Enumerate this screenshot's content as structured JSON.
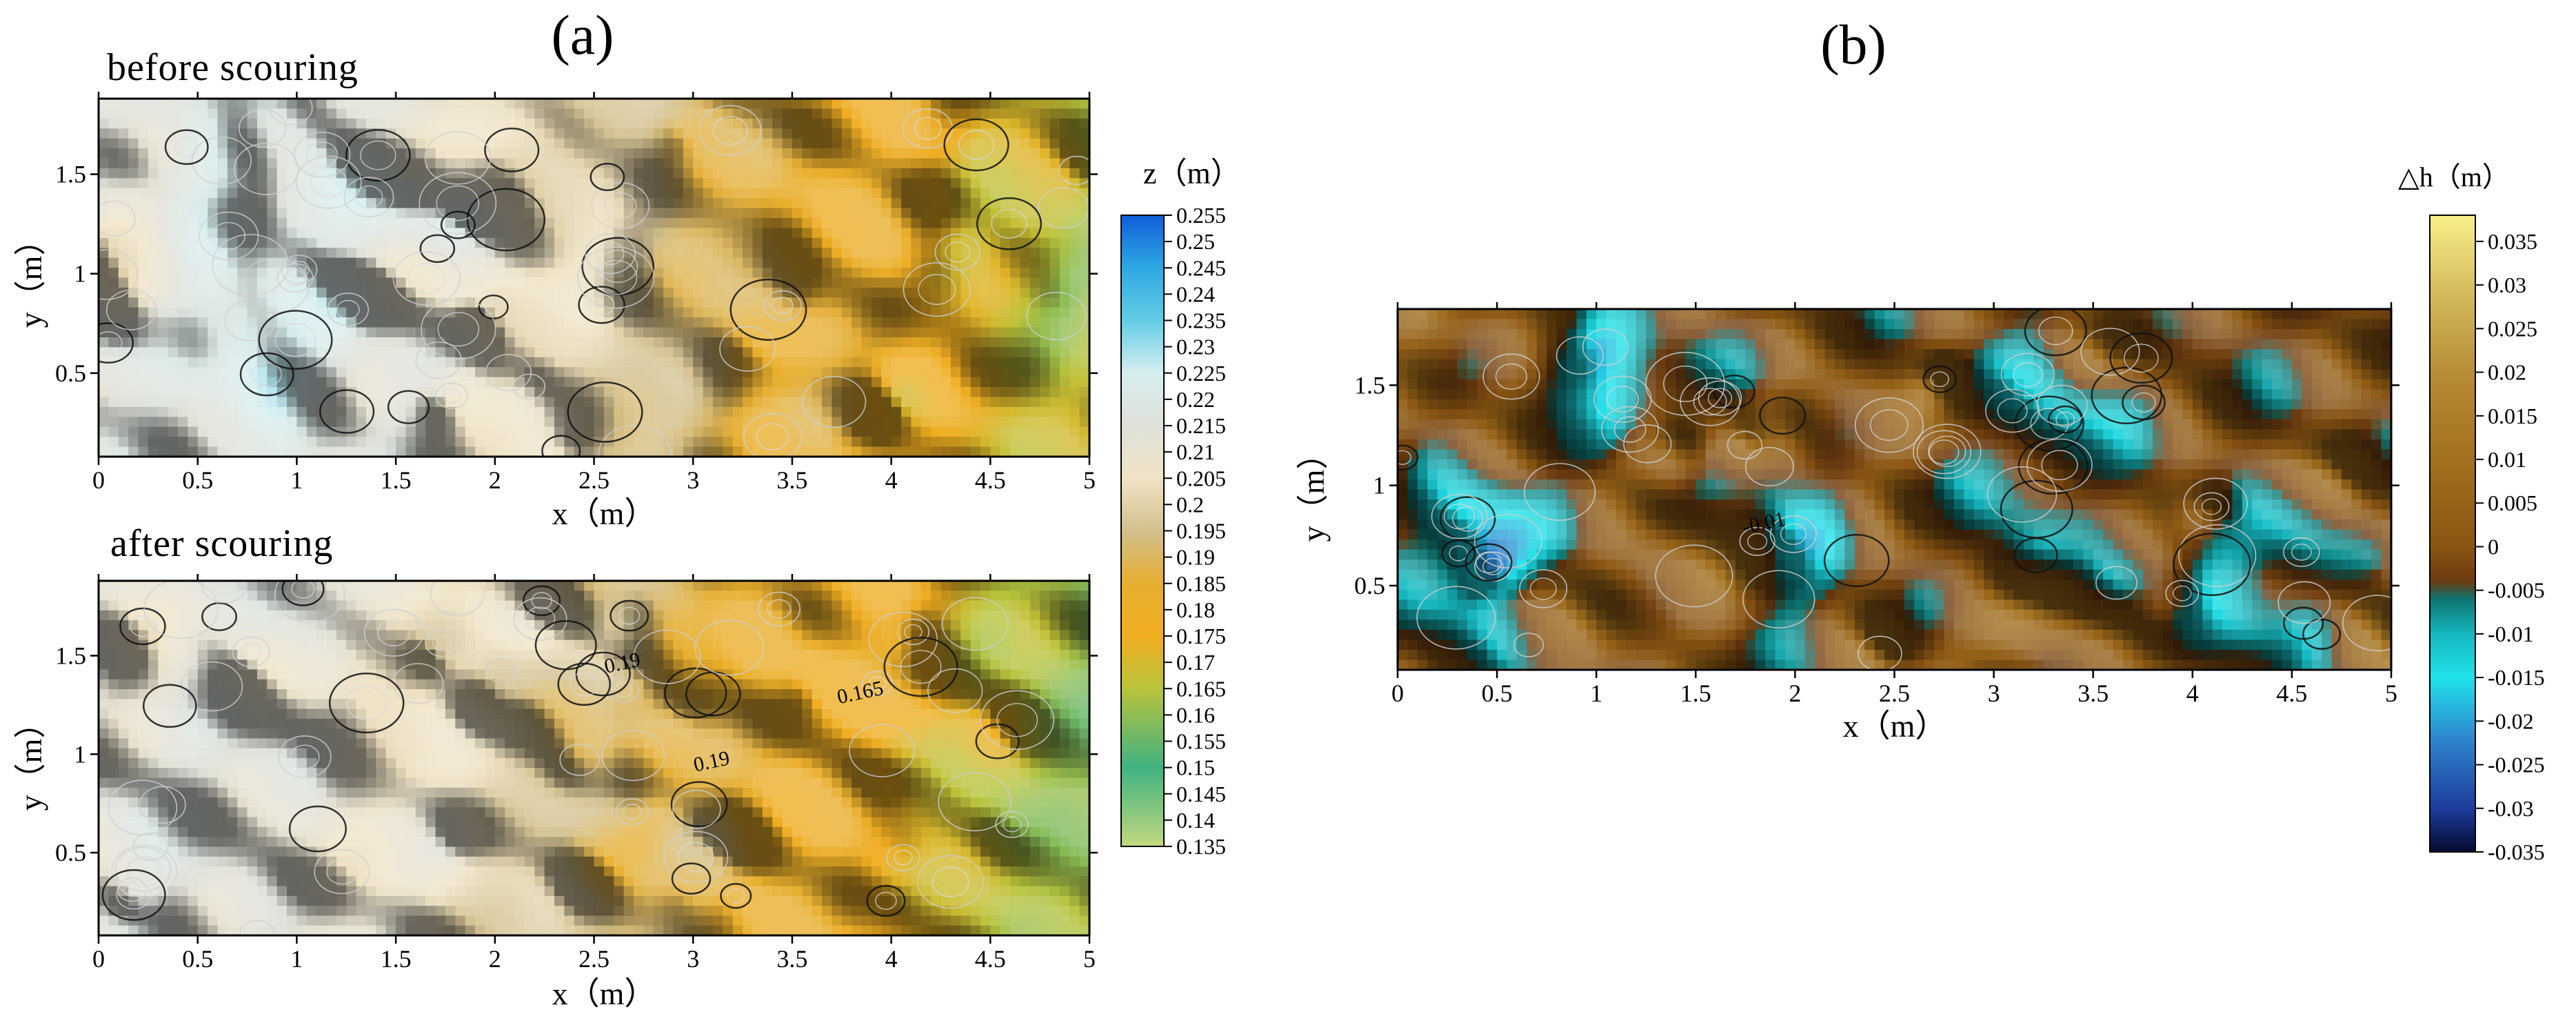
{
  "chart_data": [
    {
      "type": "heatmap",
      "panel_label": "(a)",
      "title": "before scouring",
      "xlabel": "x（m）",
      "ylabel": "y（m）",
      "xlim": [
        0,
        5
      ],
      "ylim": [
        0.08,
        1.88
      ],
      "xticks": [
        "0",
        "0.5",
        "1",
        "1.5",
        "2",
        "2.5",
        "3",
        "3.5",
        "4",
        "4.5",
        "5"
      ],
      "yticks": [
        "0.5",
        "1",
        "1.5"
      ],
      "z_trend": {
        "x": [
          0,
          0.5,
          1,
          1.5,
          2,
          2.5,
          3,
          3.5,
          4,
          4.5,
          5
        ],
        "z": [
          0.215,
          0.217,
          0.218,
          0.214,
          0.207,
          0.2,
          0.19,
          0.183,
          0.178,
          0.172,
          0.165
        ]
      },
      "contour_labels": []
    },
    {
      "type": "heatmap",
      "title": "after scouring",
      "xlabel": "x（m）",
      "ylabel": "y（m）",
      "xlim": [
        0,
        5
      ],
      "ylim": [
        0.08,
        1.88
      ],
      "xticks": [
        "0",
        "0.5",
        "1",
        "1.5",
        "2",
        "2.5",
        "3",
        "3.5",
        "4",
        "4.5",
        "5"
      ],
      "yticks": [
        "0.5",
        "1",
        "1.5"
      ],
      "z_trend": {
        "x": [
          0,
          0.5,
          1,
          1.5,
          2,
          2.5,
          3,
          3.5,
          4,
          4.5,
          5
        ],
        "z": [
          0.212,
          0.214,
          0.215,
          0.21,
          0.203,
          0.195,
          0.188,
          0.182,
          0.176,
          0.168,
          0.16
        ]
      },
      "contour_labels": [
        {
          "x": 2.65,
          "y": 1.43,
          "text": "0.19"
        },
        {
          "x": 3.85,
          "y": 1.28,
          "text": "0.165"
        },
        {
          "x": 3.1,
          "y": 0.93,
          "text": "0.19"
        }
      ]
    },
    {
      "type": "colorbar",
      "label": "z（m）",
      "range": [
        0.135,
        0.255
      ],
      "ticks": [
        "0.255",
        "0.25",
        "0.245",
        "0.24",
        "0.235",
        "0.23",
        "0.225",
        "0.22",
        "0.215",
        "0.21",
        "0.205",
        "0.2",
        "0.195",
        "0.19",
        "0.185",
        "0.18",
        "0.175",
        "0.17",
        "0.165",
        "0.16",
        "0.155",
        "0.15",
        "0.145",
        "0.14",
        "0.135"
      ],
      "stops": [
        {
          "v": 0.135,
          "color": "#c3d97f"
        },
        {
          "v": 0.15,
          "color": "#3fb281"
        },
        {
          "v": 0.165,
          "color": "#b9c33b"
        },
        {
          "v": 0.175,
          "color": "#f0ad20"
        },
        {
          "v": 0.185,
          "color": "#e6ae30"
        },
        {
          "v": 0.195,
          "color": "#d2c08e"
        },
        {
          "v": 0.205,
          "color": "#f0e3c6"
        },
        {
          "v": 0.215,
          "color": "#dfe1d9"
        },
        {
          "v": 0.225,
          "color": "#d7eef0"
        },
        {
          "v": 0.235,
          "color": "#63cde5"
        },
        {
          "v": 0.245,
          "color": "#2fa8e3"
        },
        {
          "v": 0.255,
          "color": "#0e5ed8"
        }
      ]
    },
    {
      "type": "heatmap",
      "panel_label": "(b)",
      "xlabel": "x（m）",
      "ylabel": "y（m）",
      "xlim": [
        0,
        5
      ],
      "ylim": [
        0.08,
        1.88
      ],
      "xticks": [
        "0",
        "0.5",
        "1",
        "1.5",
        "2",
        "2.5",
        "3",
        "3.5",
        "4",
        "4.5",
        "5"
      ],
      "yticks": [
        "0.5",
        "1",
        "1.5"
      ],
      "contour_labels": [
        {
          "x": 1.85,
          "y": 0.78,
          "text": "-0.01"
        }
      ]
    },
    {
      "type": "colorbar",
      "label": "△h（m）",
      "range": [
        -0.035,
        0.038
      ],
      "ticks": [
        "0.035",
        "0.03",
        "0.025",
        "0.02",
        "0.015",
        "0.01",
        "0.005",
        "0",
        "-0.005",
        "-0.01",
        "-0.015",
        "-0.02",
        "-0.025",
        "-0.03",
        "-0.035"
      ],
      "stops": [
        {
          "v": -0.035,
          "color": "#050a30"
        },
        {
          "v": -0.03,
          "color": "#1c3c9c"
        },
        {
          "v": -0.022,
          "color": "#2f86cf"
        },
        {
          "v": -0.015,
          "color": "#1fe3ea"
        },
        {
          "v": -0.01,
          "color": "#15b7bf"
        },
        {
          "v": -0.006,
          "color": "#0d7470"
        },
        {
          "v": -0.004,
          "color": "#6b3a10"
        },
        {
          "v": 0.0,
          "color": "#8a5512"
        },
        {
          "v": 0.01,
          "color": "#a2701e"
        },
        {
          "v": 0.02,
          "color": "#b78d37"
        },
        {
          "v": 0.03,
          "color": "#d8c060"
        },
        {
          "v": 0.038,
          "color": "#f8f089"
        }
      ]
    }
  ]
}
